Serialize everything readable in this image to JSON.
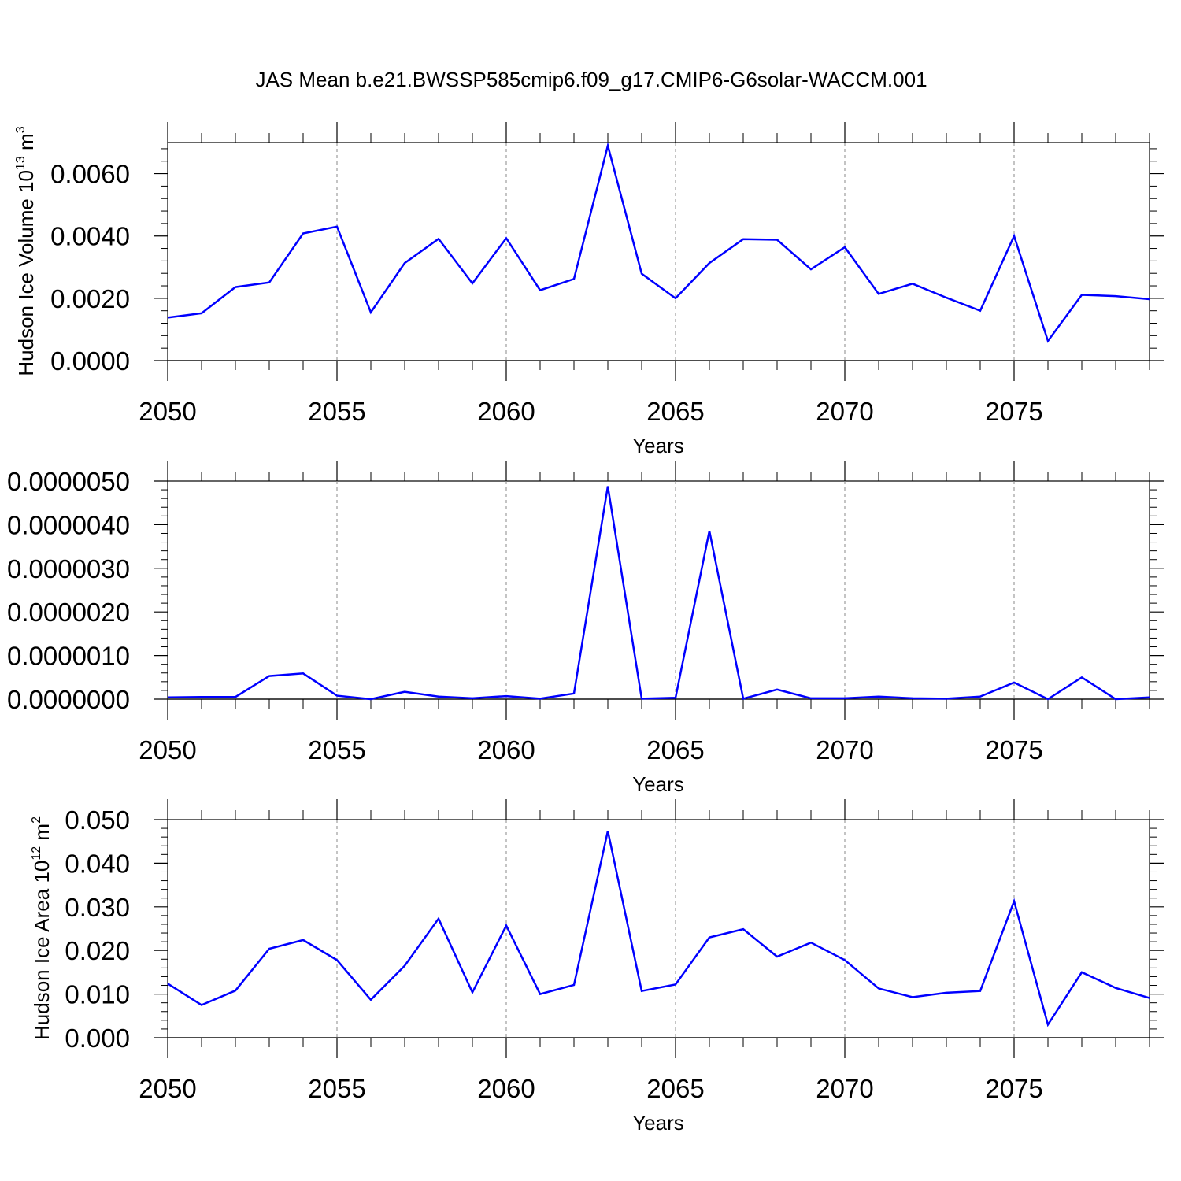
{
  "title": "JAS Mean b.e21.BWSSP585cmip6.f09_g17.CMIP6-G6solar-WACCM.001",
  "chart_data": [
    {
      "type": "line",
      "ylabel": "Hudson Ice Volume 10",
      "ylabel_sup": "13",
      "ylabel_unit": "m",
      "ylabel_unit_sup": "3",
      "xlabel": "Years",
      "xlim": [
        2050,
        2079
      ],
      "ylim": [
        0,
        0.007
      ],
      "x_ticks": [
        "2050",
        "2055",
        "2060",
        "2065",
        "2070",
        "2075"
      ],
      "y_ticks": [
        "0.0000",
        "0.0020",
        "0.0040",
        "0.0060"
      ],
      "color": "#0000ff",
      "x": [
        2050,
        2051,
        2052,
        2053,
        2054,
        2055,
        2056,
        2057,
        2058,
        2059,
        2060,
        2061,
        2062,
        2063,
        2064,
        2065,
        2066,
        2067,
        2068,
        2069,
        2070,
        2071,
        2072,
        2073,
        2074,
        2075,
        2076,
        2077,
        2078,
        2079
      ],
      "values": [
        0.00138,
        0.00152,
        0.00236,
        0.00251,
        0.00408,
        0.0043,
        0.00155,
        0.00313,
        0.00391,
        0.00248,
        0.00393,
        0.00226,
        0.00262,
        0.0069,
        0.00279,
        0.002,
        0.00313,
        0.0039,
        0.00388,
        0.00293,
        0.00364,
        0.00214,
        0.00247,
        0.00202,
        0.0016,
        0.004,
        0.00063,
        0.00211,
        0.00207,
        0.00197
      ]
    },
    {
      "type": "line",
      "ylabel": "",
      "xlabel": "Years",
      "xlim": [
        2050,
        2079
      ],
      "ylim": [
        0,
        5e-06
      ],
      "x_ticks": [
        "2050",
        "2055",
        "2060",
        "2065",
        "2070",
        "2075"
      ],
      "y_ticks": [
        "0.0000000",
        "0.0000010",
        "0.0000020",
        "0.0000030",
        "0.0000040",
        "0.0000050"
      ],
      "color": "#0000ff",
      "x": [
        2050,
        2051,
        2052,
        2053,
        2054,
        2055,
        2056,
        2057,
        2058,
        2059,
        2060,
        2061,
        2062,
        2063,
        2064,
        2065,
        2066,
        2067,
        2068,
        2069,
        2070,
        2071,
        2072,
        2073,
        2074,
        2075,
        2076,
        2077,
        2078,
        2079
      ],
      "values": [
        4e-08,
        5e-08,
        5e-08,
        5.3e-07,
        5.9e-07,
        8e-08,
        0.0,
        1.7e-07,
        6e-08,
        2e-08,
        7e-08,
        1e-08,
        1.3e-07,
        4.88e-06,
        1e-08,
        3e-08,
        3.86e-06,
        1e-08,
        2.2e-07,
        2e-08,
        2e-08,
        6e-08,
        2e-08,
        1e-08,
        6e-08,
        3.8e-07,
        0.0,
        5e-07,
        0.0,
        4e-08
      ]
    },
    {
      "type": "line",
      "ylabel": "Hudson Ice Area 10",
      "ylabel_sup": "12",
      "ylabel_unit": "m",
      "ylabel_unit_sup": "2",
      "xlabel": "Years",
      "xlim": [
        2050,
        2079
      ],
      "ylim": [
        0,
        0.05
      ],
      "x_ticks": [
        "2050",
        "2055",
        "2060",
        "2065",
        "2070",
        "2075"
      ],
      "y_ticks": [
        "0.000",
        "0.010",
        "0.020",
        "0.030",
        "0.040",
        "0.050"
      ],
      "color": "#0000ff",
      "x": [
        2050,
        2051,
        2052,
        2053,
        2054,
        2055,
        2056,
        2057,
        2058,
        2059,
        2060,
        2061,
        2062,
        2063,
        2064,
        2065,
        2066,
        2067,
        2068,
        2069,
        2070,
        2071,
        2072,
        2073,
        2074,
        2075,
        2076,
        2077,
        2078,
        2079
      ],
      "values": [
        0.0124,
        0.0075,
        0.0108,
        0.0204,
        0.0224,
        0.0178,
        0.0087,
        0.0165,
        0.0273,
        0.0104,
        0.0257,
        0.01,
        0.0121,
        0.0474,
        0.0107,
        0.0122,
        0.023,
        0.0249,
        0.0186,
        0.0218,
        0.0178,
        0.0113,
        0.0093,
        0.0103,
        0.0107,
        0.0313,
        0.003,
        0.015,
        0.0114,
        0.0091
      ]
    }
  ]
}
